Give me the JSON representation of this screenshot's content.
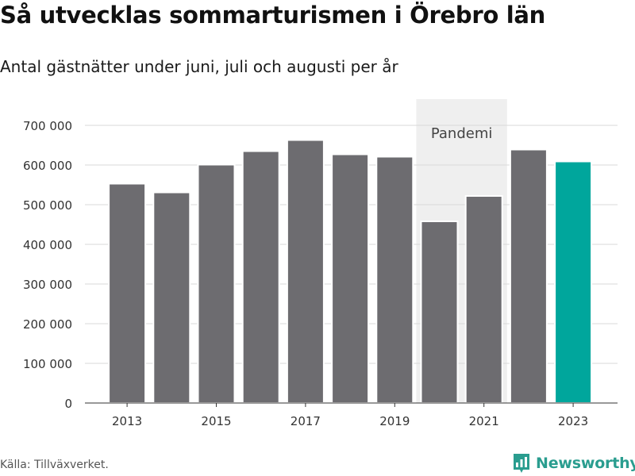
{
  "title": "Så utvecklas sommarturismen i Örebro län",
  "subtitle": "Antal gästnätter under juni, juli och augusti per år",
  "source": "Källa: Tillväxverket.",
  "brand": {
    "name": "Newsworthy",
    "icon": "newsworthy-logo-icon"
  },
  "colors": {
    "bar": "#6d6c70",
    "highlight": "#00a69c",
    "band": "#efefef",
    "grid": "#d9d9d9",
    "axis": "#333333",
    "brand": "#2a9d8f"
  },
  "chart_data": {
    "type": "bar",
    "title": "Så utvecklas sommarturismen i Örebro län",
    "subtitle": "Antal gästnätter under juni, juli och augusti per år",
    "categories": [
      "2013",
      "2014",
      "2015",
      "2016",
      "2017",
      "2018",
      "2019",
      "2020",
      "2021",
      "2022",
      "2023"
    ],
    "values": [
      553000,
      531000,
      601000,
      635000,
      663000,
      627000,
      621000,
      458000,
      522000,
      639000,
      609000
    ],
    "highlight": "2023",
    "ylim": [
      0,
      700000
    ],
    "yticks": [
      0,
      100000,
      200000,
      300000,
      400000,
      500000,
      600000,
      700000
    ],
    "ytick_labels": [
      "0",
      "100 000",
      "200 000",
      "300 000",
      "400 000",
      "500 000",
      "600 000",
      "700 000"
    ],
    "xtick_labels": [
      "2013",
      "2015",
      "2017",
      "2019",
      "2021",
      "2023"
    ],
    "annotation": {
      "label": "Pandemi",
      "from": "2020",
      "to": "2021"
    },
    "grid": true,
    "legend": "none"
  }
}
